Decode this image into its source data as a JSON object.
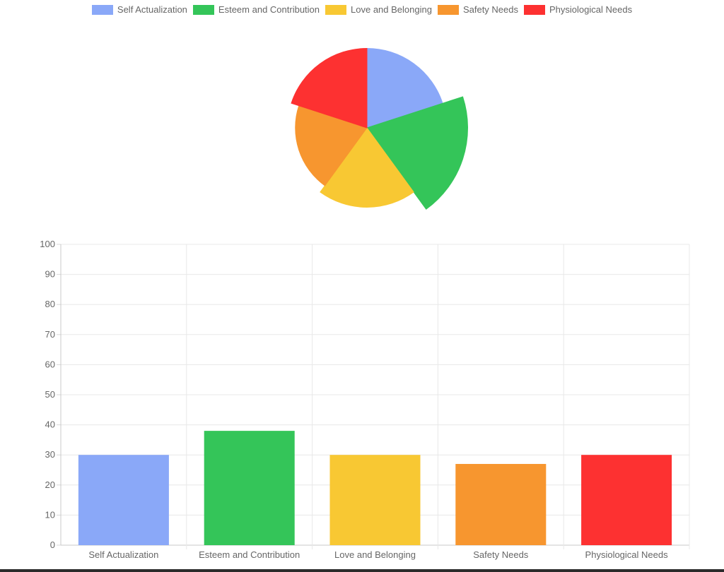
{
  "chart_data": [
    {
      "type": "polarArea",
      "categories": [
        "Self Actualization",
        "Esteem and Contribution",
        "Love and Belonging",
        "Safety Needs",
        "Physiological Needs"
      ],
      "values": [
        30,
        38,
        30,
        27,
        30
      ],
      "colors": [
        "#8aa8f8",
        "#34c559",
        "#f8c833",
        "#f7962f",
        "#fd3131"
      ],
      "legend": "top"
    },
    {
      "type": "bar",
      "categories": [
        "Self Actualization",
        "Esteem and Contribution",
        "Love and Belonging",
        "Safety Needs",
        "Physiological Needs"
      ],
      "values": [
        30,
        38,
        30,
        27,
        30
      ],
      "colors": [
        "#8aa8f8",
        "#34c559",
        "#f8c833",
        "#f7962f",
        "#fd3131"
      ],
      "ylim": [
        0,
        100
      ],
      "yticks": [
        0,
        10,
        20,
        30,
        40,
        50,
        60,
        70,
        80,
        90,
        100
      ],
      "grid": true
    }
  ]
}
